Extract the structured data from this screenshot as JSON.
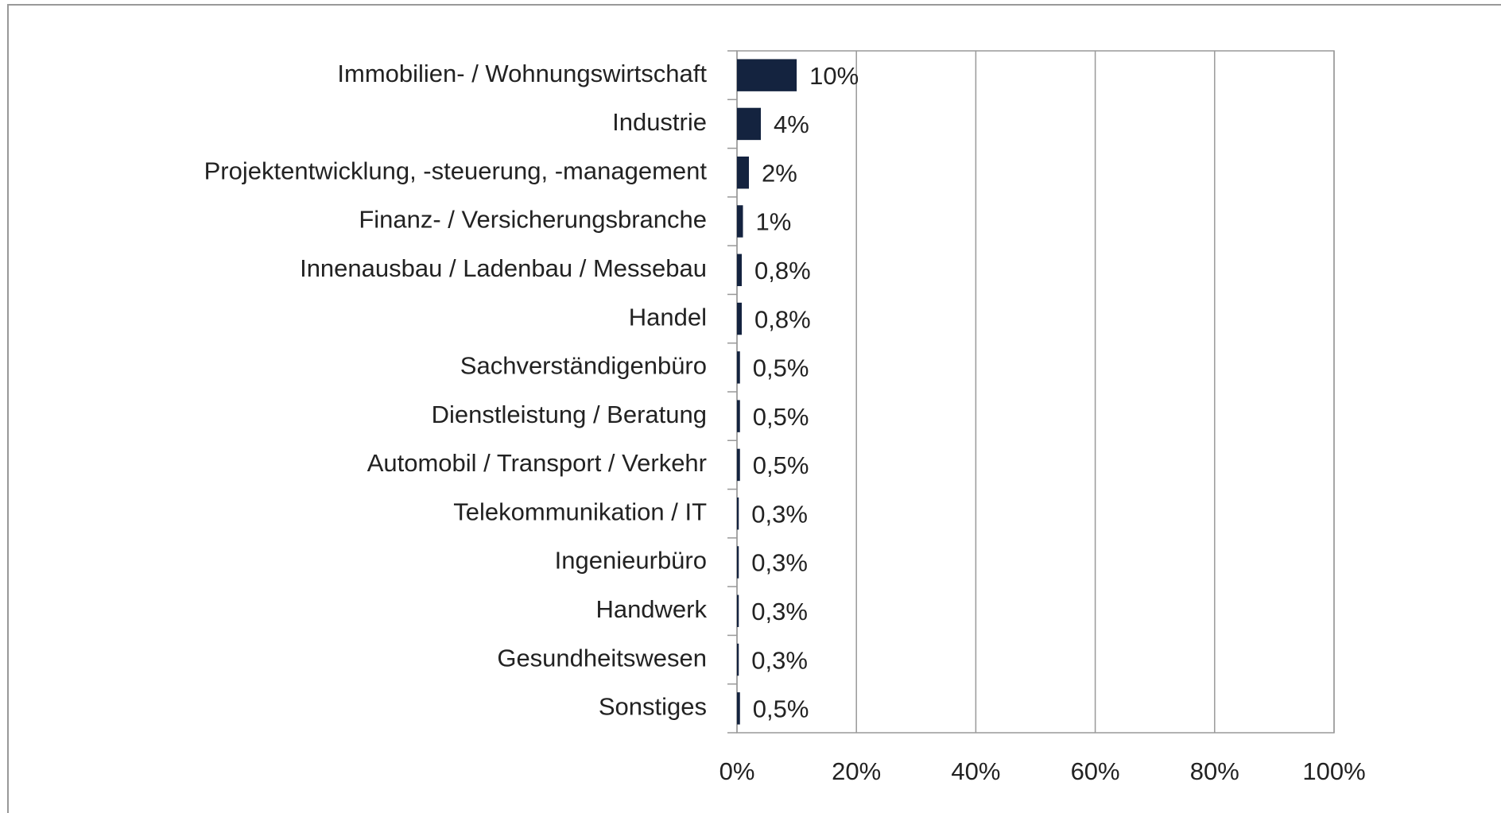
{
  "chart_data": {
    "type": "bar",
    "orientation": "horizontal",
    "categories": [
      "Immobilien- / Wohnungswirtschaft",
      "Industrie",
      "Projektentwicklung, -steuerung, -management",
      "Finanz- / Versicherungsbranche",
      "Innenausbau / Ladenbau / Messebau",
      "Handel",
      "Sachverständigenbüro",
      "Dienstleistung / Beratung",
      "Automobil / Transport / Verkehr",
      "Telekommunikation / IT",
      "Ingenieurbüro",
      "Handwerk",
      "Gesundheitswesen",
      "Sonstiges"
    ],
    "values": [
      10,
      4,
      2,
      1,
      0.8,
      0.8,
      0.5,
      0.5,
      0.5,
      0.3,
      0.3,
      0.3,
      0.3,
      0.5
    ],
    "value_labels": [
      "10%",
      "4%",
      "2%",
      "1%",
      "0,8%",
      "0,8%",
      "0,5%",
      "0,5%",
      "0,5%",
      "0,3%",
      "0,3%",
      "0,3%",
      "0,3%",
      "0,5%"
    ],
    "color": "#14233f",
    "xlim": [
      0,
      100
    ],
    "xticks": [
      {
        "value": 0,
        "label": "0%"
      },
      {
        "value": 20,
        "label": "20%"
      },
      {
        "value": 40,
        "label": "40%"
      },
      {
        "value": 60,
        "label": "60%"
      },
      {
        "value": 80,
        "label": "80%"
      },
      {
        "value": 100,
        "label": "100%"
      }
    ],
    "grid": true
  }
}
